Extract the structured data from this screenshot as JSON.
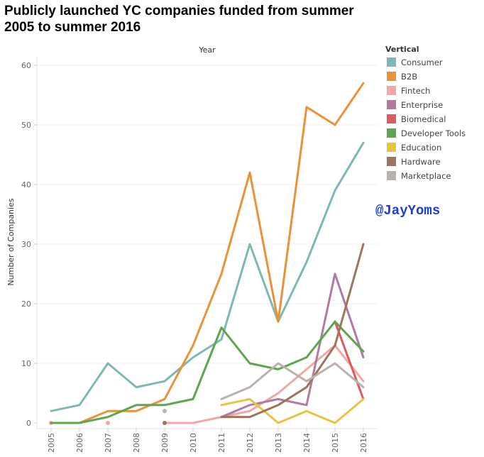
{
  "chart_data": {
    "type": "line",
    "title": "Publicly launched YC companies funded from summer 2005 to summer 2016",
    "top_axis_label": "Year",
    "ylabel": "Number of Companies",
    "legend_title": "Vertical",
    "legend_position": "right",
    "watermark": "@JayYoms",
    "grid": true,
    "x": [
      "2005",
      "2006",
      "2007",
      "2008",
      "2009",
      "2010",
      "2011",
      "2012",
      "2013",
      "2014",
      "2015",
      "2016"
    ],
    "ylim": [
      0,
      62
    ],
    "yticks": [
      0,
      10,
      20,
      30,
      40,
      50,
      60
    ],
    "series": [
      {
        "name": "Consumer",
        "color": "#7cb8b4",
        "values": [
          2,
          3,
          10,
          6,
          7,
          11,
          14,
          30,
          17,
          27,
          39,
          47
        ]
      },
      {
        "name": "B2B",
        "color": "#ea9239",
        "values": [
          0,
          0,
          2,
          2,
          4,
          13,
          25,
          42,
          17,
          53,
          50,
          57
        ]
      },
      {
        "name": "Fintech",
        "color": "#f4a6a6",
        "values": [
          0,
          null,
          0,
          null,
          0,
          0,
          1,
          2,
          5,
          9,
          13,
          7
        ]
      },
      {
        "name": "Enterprise",
        "color": "#b07aa1",
        "values": [
          null,
          null,
          null,
          null,
          null,
          null,
          1,
          3,
          4,
          3,
          25,
          11
        ]
      },
      {
        "name": "Biomedical",
        "color": "#dc5b5e",
        "values": [
          null,
          null,
          null,
          null,
          null,
          null,
          null,
          null,
          null,
          null,
          17,
          4
        ]
      },
      {
        "name": "Developer Tools",
        "color": "#5ea54f",
        "values": [
          0,
          0,
          1,
          3,
          3,
          4,
          16,
          10,
          9,
          11,
          17,
          12
        ]
      },
      {
        "name": "Education",
        "color": "#e8c33f",
        "values": [
          null,
          null,
          null,
          null,
          null,
          null,
          3,
          4,
          0,
          2,
          0,
          4
        ]
      },
      {
        "name": "Hardware",
        "color": "#9e7460",
        "values": [
          null,
          null,
          null,
          null,
          0,
          null,
          1,
          1,
          3,
          6,
          13,
          30
        ]
      },
      {
        "name": "Marketplace",
        "color": "#bab0ac",
        "values": [
          null,
          null,
          null,
          null,
          2,
          null,
          4,
          6,
          10,
          7,
          10,
          6
        ]
      }
    ]
  }
}
